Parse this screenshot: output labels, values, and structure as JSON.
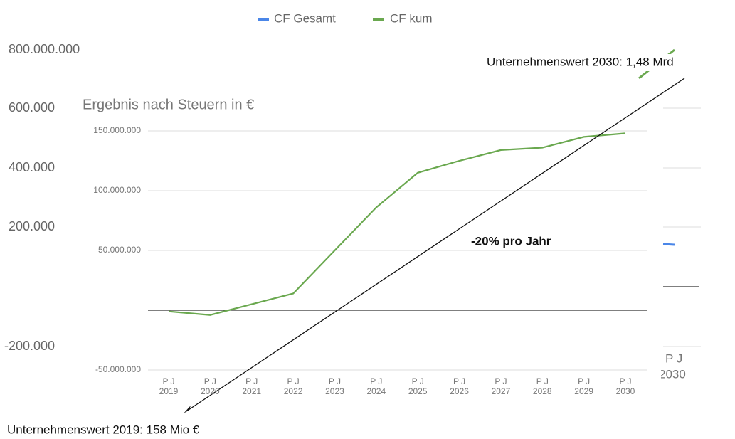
{
  "background": {
    "legend": [
      {
        "name": "CF Gesamt",
        "color": "#4a86e8"
      },
      {
        "name": "CF kum",
        "color": "#6aa84f"
      }
    ],
    "ytick_labels": [
      "800.000.000",
      "600.000",
      "400.000",
      "200.000",
      "-200.000"
    ],
    "xtick_label": [
      "P J",
      "2030"
    ]
  },
  "chart_data": {
    "type": "line",
    "title": "Ergebnis nach Steuern in €",
    "categories": [
      "P J 2019",
      "P J 2020",
      "P J 2021",
      "P J 2022",
      "P J 2023",
      "P J 2024",
      "P J 2025",
      "P J 2026",
      "P J 2027",
      "P J 2028",
      "P J 2029",
      "P J 2030"
    ],
    "series": [
      {
        "name": "CF kum",
        "color": "#6aa84f",
        "values": [
          -1000000,
          -4000000,
          5000000,
          14000000,
          50000000,
          86000000,
          115000000,
          125000000,
          134000000,
          136000000,
          145000000,
          148000000
        ]
      }
    ],
    "ylim": [
      -50000000,
      150000000
    ],
    "yticks": [
      {
        "value": -50000000,
        "label": "-50.000.000"
      },
      {
        "value": 50000000,
        "label": "50.000.000"
      },
      {
        "value": 100000000,
        "label": "100.000.000"
      },
      {
        "value": 150000000,
        "label": "150.000.000"
      }
    ],
    "grid": true,
    "annotations": [
      "-20% pro Jahr",
      "Unternehmenswert 2030: 1,48 Mrd",
      "Unternehmenswert 2019:  158 Mio €"
    ]
  }
}
